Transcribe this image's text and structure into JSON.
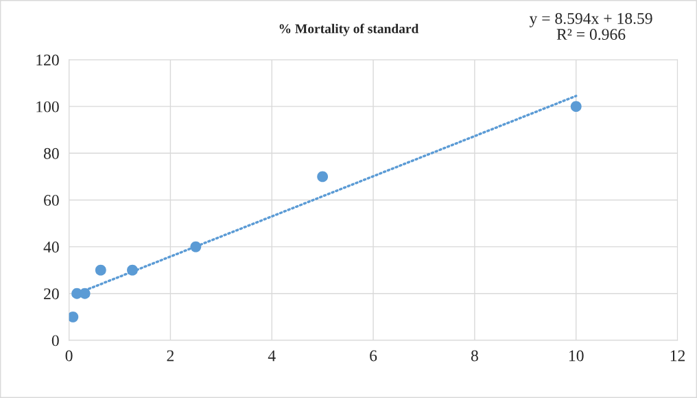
{
  "chart_data": {
    "type": "scatter",
    "title": "% Mortality of standard",
    "series": [
      {
        "color": "#5b9bd5",
        "marker": "circle",
        "x": [
          0.078,
          0.156,
          0.3125,
          0.625,
          1.25,
          2.5,
          5,
          10
        ],
        "values": [
          10,
          20,
          20,
          30,
          30,
          40,
          70,
          100
        ]
      },
      {
        "type": "line",
        "color": "#5b9bd5",
        "marker": "none",
        "line_style": "dotted",
        "x": [
          0.078,
          10
        ],
        "values": [
          19.3,
          104.5
        ]
      }
    ],
    "annotations": [
      "y = 8.594x + 18.59\nR² = 0.966"
    ],
    "xlim": [
      0,
      12
    ],
    "xticks": [
      0,
      2,
      4,
      6,
      8,
      10,
      12
    ],
    "ylim": [
      0,
      120
    ],
    "yticks": [
      0,
      20,
      40,
      60,
      80,
      100,
      120
    ],
    "grid": true,
    "legend": false
  }
}
